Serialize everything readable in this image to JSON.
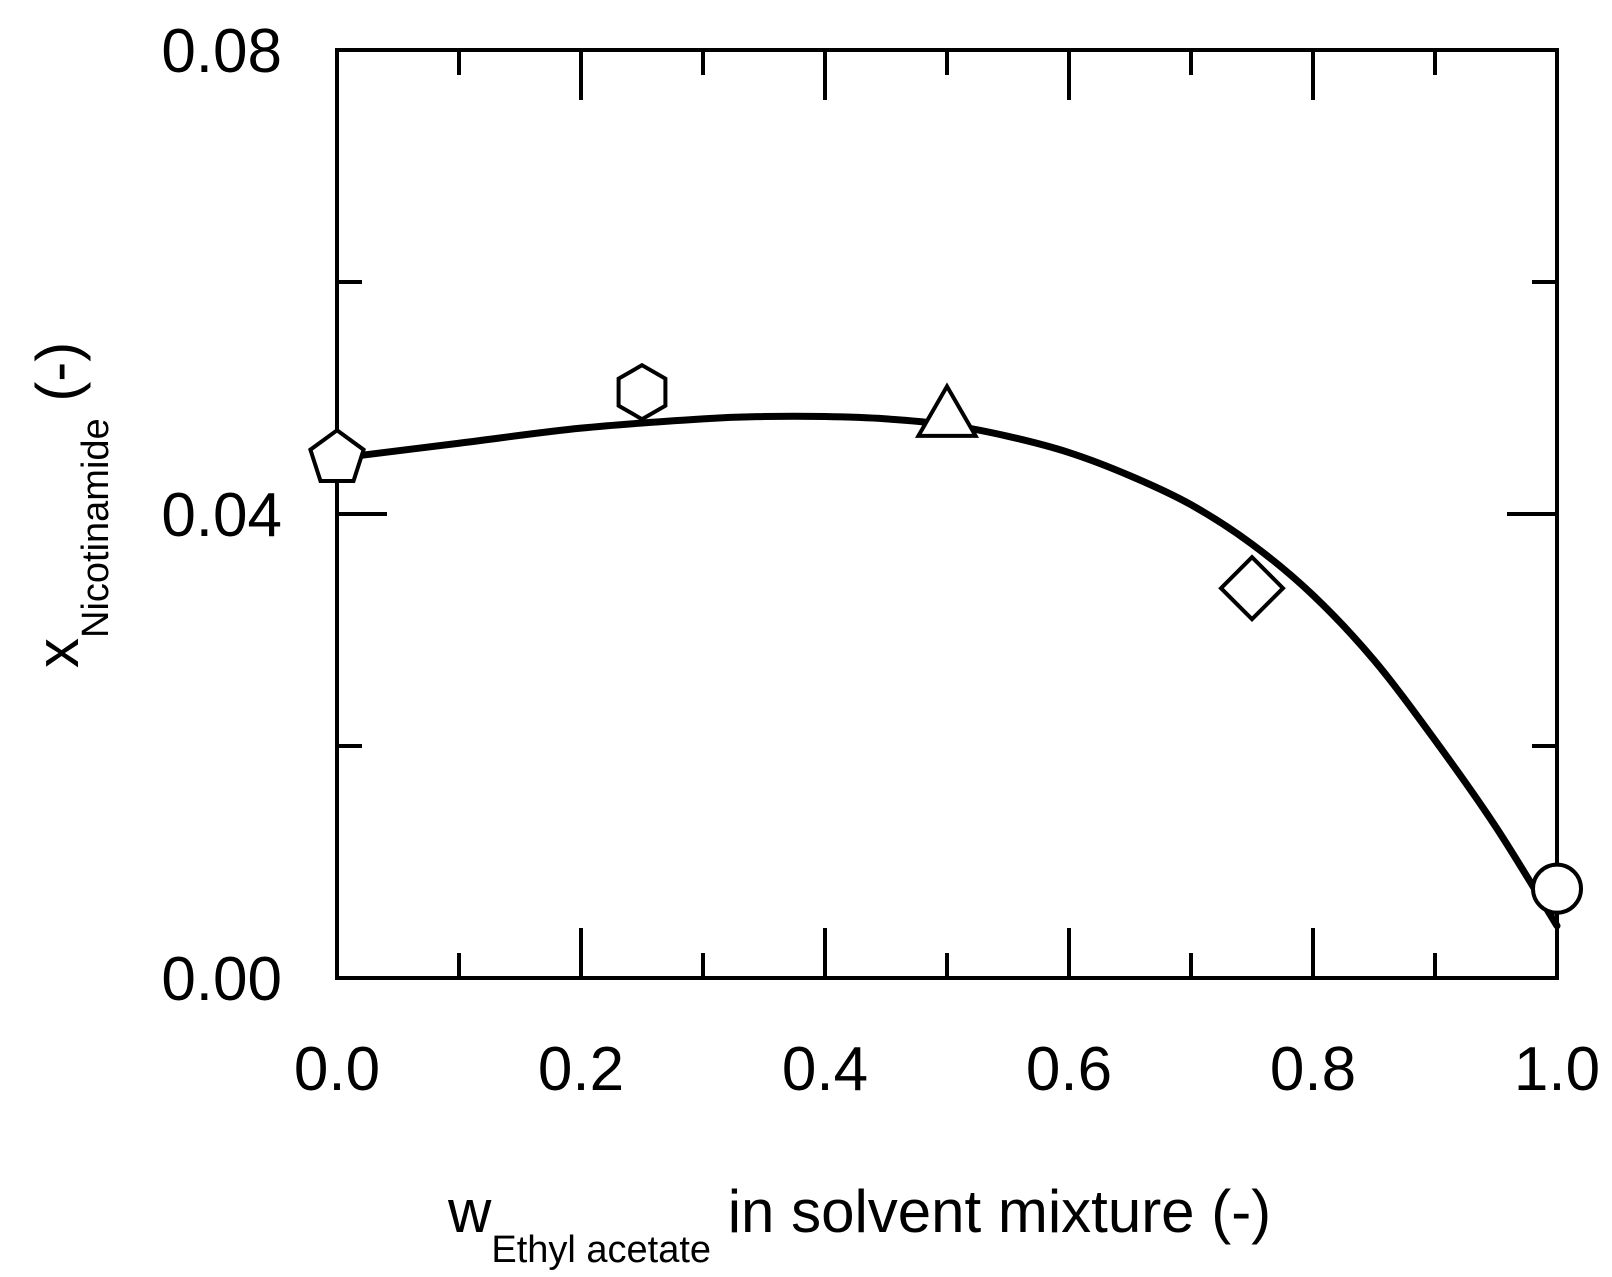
{
  "chart_data": {
    "type": "scatter",
    "xlabel": {
      "main": "w",
      "sub": "Ethyl acetate",
      "rest": " in solvent mixture (-)"
    },
    "ylabel": {
      "main": "x",
      "sub": "Nicotinamide",
      "rest": " (-)"
    },
    "xlim": [
      0,
      1
    ],
    "ylim": [
      0,
      0.08
    ],
    "x_major_ticks": [
      0.0,
      0.2,
      0.4,
      0.6,
      0.8,
      1.0
    ],
    "x_tick_labels": [
      "0.0",
      "0.2",
      "0.4",
      "0.6",
      "0.8",
      "1.0"
    ],
    "x_minor_ticks": [
      0.1,
      0.3,
      0.5,
      0.7,
      0.9
    ],
    "y_major_ticks": [
      0.0,
      0.04,
      0.08
    ],
    "y_tick_labels": [
      "0.00",
      "0.04",
      "0.08"
    ],
    "y_minor_ticks": [
      0.02,
      0.06
    ],
    "grid": false,
    "points": [
      {
        "x": 0.0,
        "y": 0.0448,
        "marker": "pentagon"
      },
      {
        "x": 0.25,
        "y": 0.0505,
        "marker": "hexagon"
      },
      {
        "x": 0.5,
        "y": 0.0485,
        "marker": "triangle"
      },
      {
        "x": 0.75,
        "y": 0.0336,
        "marker": "diamond"
      },
      {
        "x": 1.0,
        "y": 0.0077,
        "marker": "circle"
      }
    ],
    "fit_curve": {
      "x": [
        0.0,
        0.1,
        0.2,
        0.3,
        0.35,
        0.4,
        0.45,
        0.5,
        0.55,
        0.6,
        0.65,
        0.7,
        0.75,
        0.8,
        0.85,
        0.9,
        0.95,
        1.0
      ],
      "y": [
        0.0448,
        0.0461,
        0.0474,
        0.0482,
        0.0484,
        0.0484,
        0.0482,
        0.0477,
        0.0467,
        0.0453,
        0.0433,
        0.0408,
        0.0374,
        0.033,
        0.0274,
        0.0205,
        0.013,
        0.0045
      ]
    }
  }
}
